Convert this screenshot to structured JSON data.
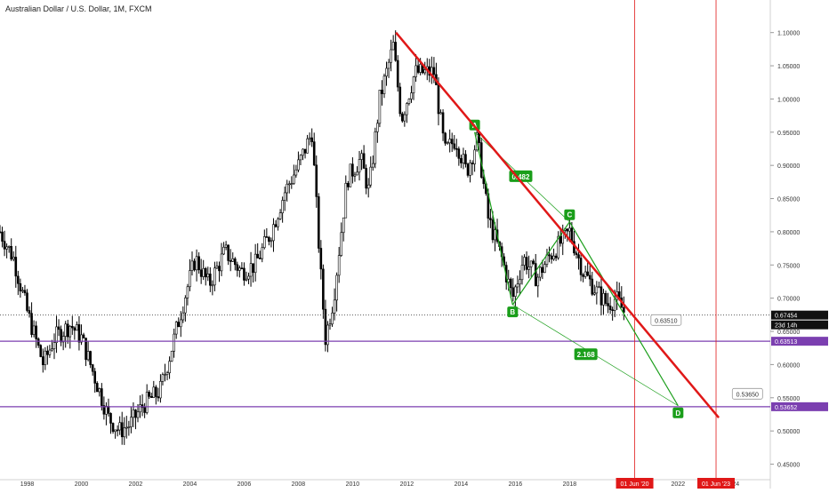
{
  "header": {
    "symbol_title": "Australian Dollar / U.S. Dollar, 1M, FXCM"
  },
  "chart_data": {
    "type": "candlestick",
    "title": "Australian Dollar / U.S. Dollar, 1M, FXCM",
    "xlabel": "",
    "ylabel": "",
    "xlim": [
      1997.0,
      2025.4
    ],
    "ylim": [
      0.44,
      1.125
    ],
    "x_ticks": [
      1998,
      2000,
      2002,
      2004,
      2006,
      2008,
      2010,
      2012,
      2014,
      2016,
      2018,
      2022,
      2024
    ],
    "x_tick_labels": [
      "1998",
      "2000",
      "2002",
      "2004",
      "2006",
      "2008",
      "2010",
      "2012",
      "2014",
      "2016",
      "2018",
      "2022",
      "2024"
    ],
    "y_ticks": [
      0.45,
      0.5,
      0.55,
      0.6,
      0.65,
      0.7,
      0.75,
      0.8,
      0.85,
      0.9,
      0.95,
      1.0,
      1.05,
      1.1
    ],
    "y_tick_labels": [
      "0.45000",
      "0.50000",
      "0.55000",
      "0.60000",
      "0.65000",
      "0.70000",
      "0.75000",
      "0.80000",
      "0.85000",
      "0.90000",
      "0.95000",
      "1.00000",
      "1.05000",
      "1.10000"
    ],
    "price_path": [
      [
        1997.0,
        0.8
      ],
      [
        1997.5,
        0.76
      ],
      [
        1998.0,
        0.68
      ],
      [
        1998.6,
        0.6
      ],
      [
        1999.0,
        0.64
      ],
      [
        1999.6,
        0.66
      ],
      [
        2000.0,
        0.64
      ],
      [
        2000.5,
        0.58
      ],
      [
        2001.0,
        0.52
      ],
      [
        2001.4,
        0.5
      ],
      [
        2001.8,
        0.51
      ],
      [
        2002.3,
        0.54
      ],
      [
        2002.9,
        0.56
      ],
      [
        2003.3,
        0.62
      ],
      [
        2003.8,
        0.7
      ],
      [
        2004.2,
        0.76
      ],
      [
        2004.7,
        0.72
      ],
      [
        2005.3,
        0.77
      ],
      [
        2005.9,
        0.74
      ],
      [
        2006.4,
        0.75
      ],
      [
        2007.0,
        0.8
      ],
      [
        2007.5,
        0.86
      ],
      [
        2008.0,
        0.9
      ],
      [
        2008.5,
        0.95
      ],
      [
        2008.8,
        0.75
      ],
      [
        2009.0,
        0.64
      ],
      [
        2009.3,
        0.7
      ],
      [
        2009.8,
        0.88
      ],
      [
        2010.3,
        0.91
      ],
      [
        2010.6,
        0.86
      ],
      [
        2011.0,
        1.0
      ],
      [
        2011.5,
        1.08
      ],
      [
        2011.8,
        0.97
      ],
      [
        2012.3,
        1.04
      ],
      [
        2013.0,
        1.04
      ],
      [
        2013.4,
        0.92
      ],
      [
        2013.8,
        0.94
      ],
      [
        2014.2,
        0.89
      ],
      [
        2014.6,
        0.94
      ],
      [
        2015.0,
        0.82
      ],
      [
        2015.5,
        0.76
      ],
      [
        2015.9,
        0.7
      ],
      [
        2016.3,
        0.76
      ],
      [
        2016.8,
        0.73
      ],
      [
        2017.2,
        0.76
      ],
      [
        2017.6,
        0.78
      ],
      [
        2018.0,
        0.8
      ],
      [
        2018.5,
        0.74
      ],
      [
        2019.0,
        0.71
      ],
      [
        2019.4,
        0.69
      ],
      [
        2019.7,
        0.7
      ],
      [
        2020.0,
        0.68
      ]
    ],
    "last_price": {
      "value": 0.67454,
      "label": "0.67454",
      "countdown": "23d 14h"
    },
    "horizontal_levels": [
      {
        "value": 0.63513,
        "label": "0.63513",
        "color": "#7b3fb0"
      },
      {
        "value": 0.53652,
        "label": "0.53652",
        "color": "#7b3fb0"
      }
    ],
    "trendline": {
      "color": "#e01818",
      "from": [
        2011.6,
        1.1
      ],
      "to": [
        2023.5,
        0.52
      ]
    },
    "vertical_markers": [
      {
        "x": 2020.4,
        "label": "01 Jun '20",
        "color": "#e01818"
      },
      {
        "x": 2023.4,
        "label": "01 Jun '23",
        "color": "#e01818"
      }
    ],
    "pattern": {
      "color": "#1a9e1a",
      "points": [
        {
          "label": "A",
          "x": 2014.5,
          "y": 0.95
        },
        {
          "label": "B",
          "x": 2015.9,
          "y": 0.69
        },
        {
          "label": "C",
          "x": 2018.0,
          "y": 0.815
        },
        {
          "label": "D",
          "x": 2022.0,
          "y": 0.538
        }
      ],
      "ratios": [
        {
          "label": "0.482",
          "x": 2016.2,
          "y": 0.883
        },
        {
          "label": "2.168",
          "x": 2018.6,
          "y": 0.615
        }
      ]
    },
    "callouts": [
      {
        "label": "0.63510",
        "x": 2021.0,
        "y": 0.667
      },
      {
        "label": "0.53650",
        "x": 2024.0,
        "y": 0.556
      }
    ]
  }
}
